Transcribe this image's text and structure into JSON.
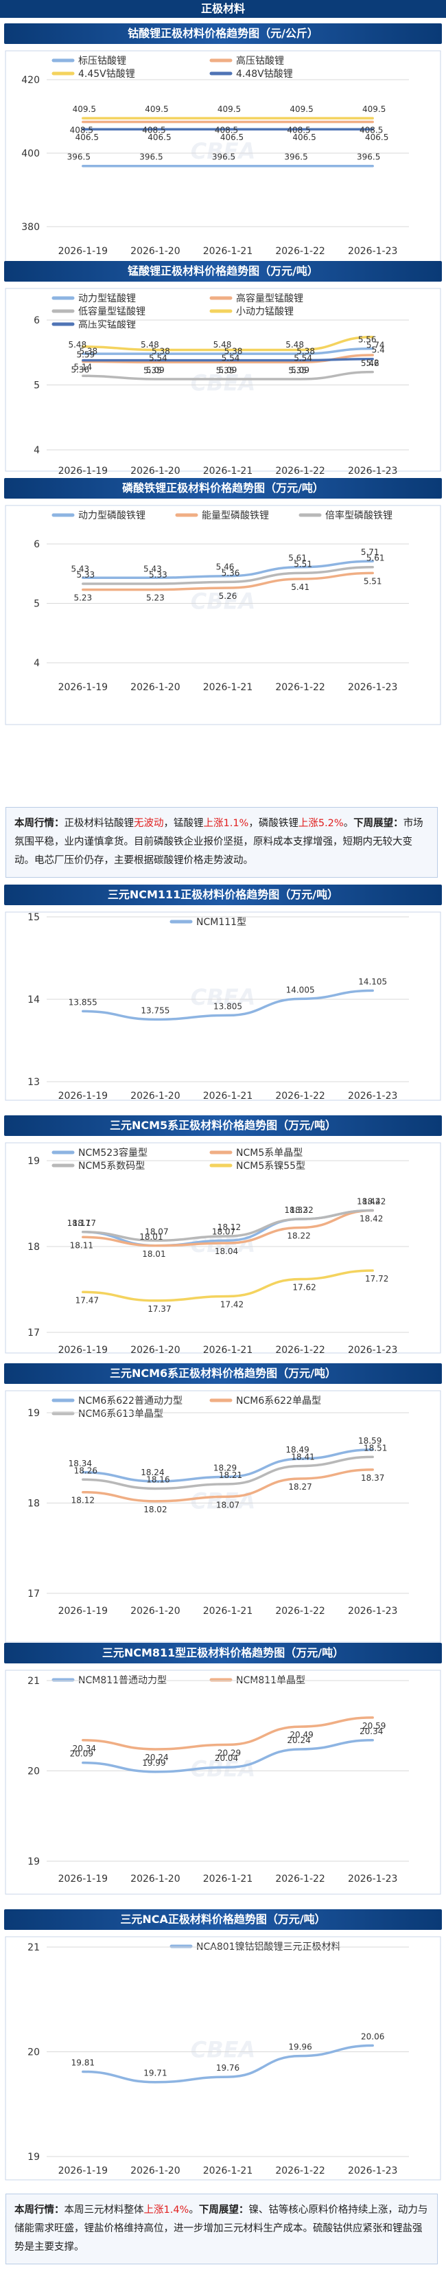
{
  "page_title": "正极材料",
  "summary_1": {
    "label1": "本周行情：",
    "seg1": "正极材料钴酸锂",
    "red1": "无波动",
    "seg2": "，锰酸锂",
    "red2": "上涨1.1%",
    "seg3": "，磷酸铁锂",
    "red3": "上涨5.2%",
    "seg4": "。",
    "label2": "下周展望：",
    "seg5": "市场氛围平稳，业内谨慎拿货。目前磷酸铁企业报价坚挺，原料成本支撑增强，短期内无较大变动。电芯厂压价仍存，主要根据碳酸锂价格走势波动。"
  },
  "summary_2": {
    "label1": "本周行情：",
    "seg1": "本周三元材料整体",
    "red1": "上涨1.4%",
    "seg2": "。",
    "label2": "下周展望：",
    "seg3": "镍、钴等核心原料价格持续上涨，动力与储能需求旺盛，锂盐价格维持高位，进一步增加三元材料生产成本。硫酸钴供应紧张和锂盐强势是主要支撑。"
  },
  "colors": {
    "blue": "#8db4e2",
    "orange": "#f0ae84",
    "gray": "#b8b8b8",
    "yellow": "#f4d35e",
    "darkblue": "#4f74b5",
    "green": "#a8d08d"
  },
  "chart_data": [
    {
      "type": "line",
      "title": "钴酸锂正极材料价格趋势图（元/公斤）",
      "x": [
        "2026-1-19",
        "2026-1-20",
        "2026-1-21",
        "2026-1-22",
        "2026-1-23"
      ],
      "ylim": [
        380,
        420
      ],
      "yticks": [
        380,
        400,
        420
      ],
      "series": [
        {
          "name": "标压钴酸锂",
          "color": "blue",
          "values": [
            396.5,
            396.5,
            396.5,
            396.5,
            396.5
          ]
        },
        {
          "name": "高压钴酸锂",
          "color": "orange",
          "values": [
            408.5,
            408.5,
            408.5,
            408.5,
            408.5
          ]
        },
        {
          "name": "4.45V钴酸锂",
          "color": "yellow",
          "values": [
            409.5,
            409.5,
            409.5,
            409.5,
            409.5
          ]
        },
        {
          "name": "4.48V钴酸锂",
          "color": "darkblue",
          "values": [
            406.5,
            406.5,
            406.5,
            406.5,
            406.5
          ]
        }
      ]
    },
    {
      "type": "line",
      "title": "锰酸锂正极材料价格趋势图（万元/吨）",
      "x": [
        "2026-1-19",
        "2026-1-20",
        "2026-1-21",
        "2026-1-22",
        "2026-1-23"
      ],
      "ylim": [
        4,
        6
      ],
      "yticks": [
        4,
        5,
        6
      ],
      "series": [
        {
          "name": "动力型锰酸锂",
          "color": "blue",
          "values": [
            5.48,
            5.48,
            5.48,
            5.48,
            5.56
          ]
        },
        {
          "name": "高容量型锰酸锂",
          "color": "orange",
          "values": [
            5.36,
            5.35,
            5.35,
            5.35,
            5.46
          ]
        },
        {
          "name": "低容量型锰酸锂",
          "color": "gray",
          "values": [
            5.14,
            5.09,
            5.09,
            5.09,
            5.2
          ]
        },
        {
          "name": "小动力锰酸锂",
          "color": "yellow",
          "values": [
            5.59,
            5.54,
            5.54,
            5.54,
            5.74
          ]
        },
        {
          "name": "高压实锰酸锂",
          "color": "darkblue",
          "values": [
            5.38,
            5.38,
            5.38,
            5.38,
            5.4
          ]
        }
      ]
    },
    {
      "type": "line",
      "title": "磷酸铁锂正极材料价格趋势图（万元/吨）",
      "x": [
        "2026-1-19",
        "2026-1-20",
        "2026-1-21",
        "2026-1-22",
        "2026-1-23"
      ],
      "ylim": [
        4,
        6
      ],
      "yticks": [
        4,
        5,
        6
      ],
      "series": [
        {
          "name": "动力型磷酸铁锂",
          "color": "blue",
          "values": [
            5.43,
            5.43,
            5.46,
            5.61,
            5.71
          ]
        },
        {
          "name": "能量型磷酸铁锂",
          "color": "orange",
          "values": [
            5.23,
            5.23,
            5.26,
            5.41,
            5.51
          ]
        },
        {
          "name": "倍率型磷酸铁锂",
          "color": "gray",
          "values": [
            5.33,
            5.33,
            5.36,
            5.51,
            5.61
          ]
        }
      ]
    },
    {
      "type": "line",
      "title": "三元NCM111正极材料价格趋势图（万元/吨）",
      "x": [
        "2026-1-19",
        "2026-1-20",
        "2026-1-21",
        "2026-1-22",
        "2026-1-23"
      ],
      "ylim": [
        13,
        15
      ],
      "yticks": [
        13,
        14,
        15
      ],
      "series": [
        {
          "name": "NCM111型",
          "color": "blue",
          "values": [
            13.855,
            13.755,
            13.805,
            14.005,
            14.105
          ]
        }
      ]
    },
    {
      "type": "line",
      "title": "三元NCM5系正极材料价格趋势图（万元/吨）",
      "x": [
        "2026-1-19",
        "2026-1-20",
        "2026-1-21",
        "2026-1-22",
        "2026-1-23"
      ],
      "ylim": [
        17,
        19
      ],
      "yticks": [
        17,
        18,
        19
      ],
      "series": [
        {
          "name": "NCM523容量型",
          "color": "blue",
          "values": [
            18.17,
            18.01,
            18.07,
            18.32,
            18.42
          ]
        },
        {
          "name": "NCM5系单晶型",
          "color": "orange",
          "values": [
            18.11,
            18.01,
            18.04,
            18.22,
            18.42
          ]
        },
        {
          "name": "NCM5系数码型",
          "color": "gray",
          "values": [
            18.17,
            18.07,
            18.12,
            18.32,
            18.42
          ]
        },
        {
          "name": "NCM5系镍55型",
          "color": "yellow",
          "values": [
            17.47,
            17.37,
            17.42,
            17.62,
            17.72
          ]
        }
      ]
    },
    {
      "type": "line",
      "title": "三元NCM6系正极材料价格趋势图（万元/吨）",
      "x": [
        "2026-1-19",
        "2026-1-20",
        "2026-1-21",
        "2026-1-22",
        "2026-1-23"
      ],
      "ylim": [
        17,
        19
      ],
      "yticks": [
        17,
        18,
        19
      ],
      "series": [
        {
          "name": "NCM6系622普通动力型",
          "color": "blue",
          "values": [
            18.34,
            18.24,
            18.29,
            18.49,
            18.59
          ]
        },
        {
          "name": "NCM6系622单晶型",
          "color": "orange",
          "values": [
            18.12,
            18.02,
            18.07,
            18.27,
            18.37
          ]
        },
        {
          "name": "NCM6系613单晶型",
          "color": "gray",
          "values": [
            18.26,
            18.16,
            18.21,
            18.41,
            18.51
          ]
        }
      ]
    },
    {
      "type": "line",
      "title": "三元NCM811型正极材料价格趋势图（万元/吨）",
      "x": [
        "2026-1-19",
        "2026-1-20",
        "2026-1-21",
        "2026-1-22",
        "2026-1-23"
      ],
      "ylim": [
        19,
        21
      ],
      "yticks": [
        19,
        20,
        21
      ],
      "series": [
        {
          "name": "NCM811普通动力型",
          "color": "blue",
          "values": [
            20.09,
            19.99,
            20.04,
            20.24,
            20.34
          ]
        },
        {
          "name": "NCM811单晶型",
          "color": "orange",
          "values": [
            20.34,
            20.24,
            20.29,
            20.49,
            20.59
          ]
        }
      ]
    },
    {
      "type": "line",
      "title": "三元NCA正极材料价格趋势图（万元/吨）",
      "x": [
        "2026-1-19",
        "2026-1-20",
        "2026-1-21",
        "2026-1-22",
        "2026-1-23"
      ],
      "ylim": [
        19,
        21
      ],
      "yticks": [
        19,
        20,
        21
      ],
      "series": [
        {
          "name": "NCA801镍钴铝酸锂三元正极材料",
          "color": "blue",
          "values": [
            19.81,
            19.71,
            19.76,
            19.96,
            20.06
          ]
        }
      ]
    }
  ]
}
